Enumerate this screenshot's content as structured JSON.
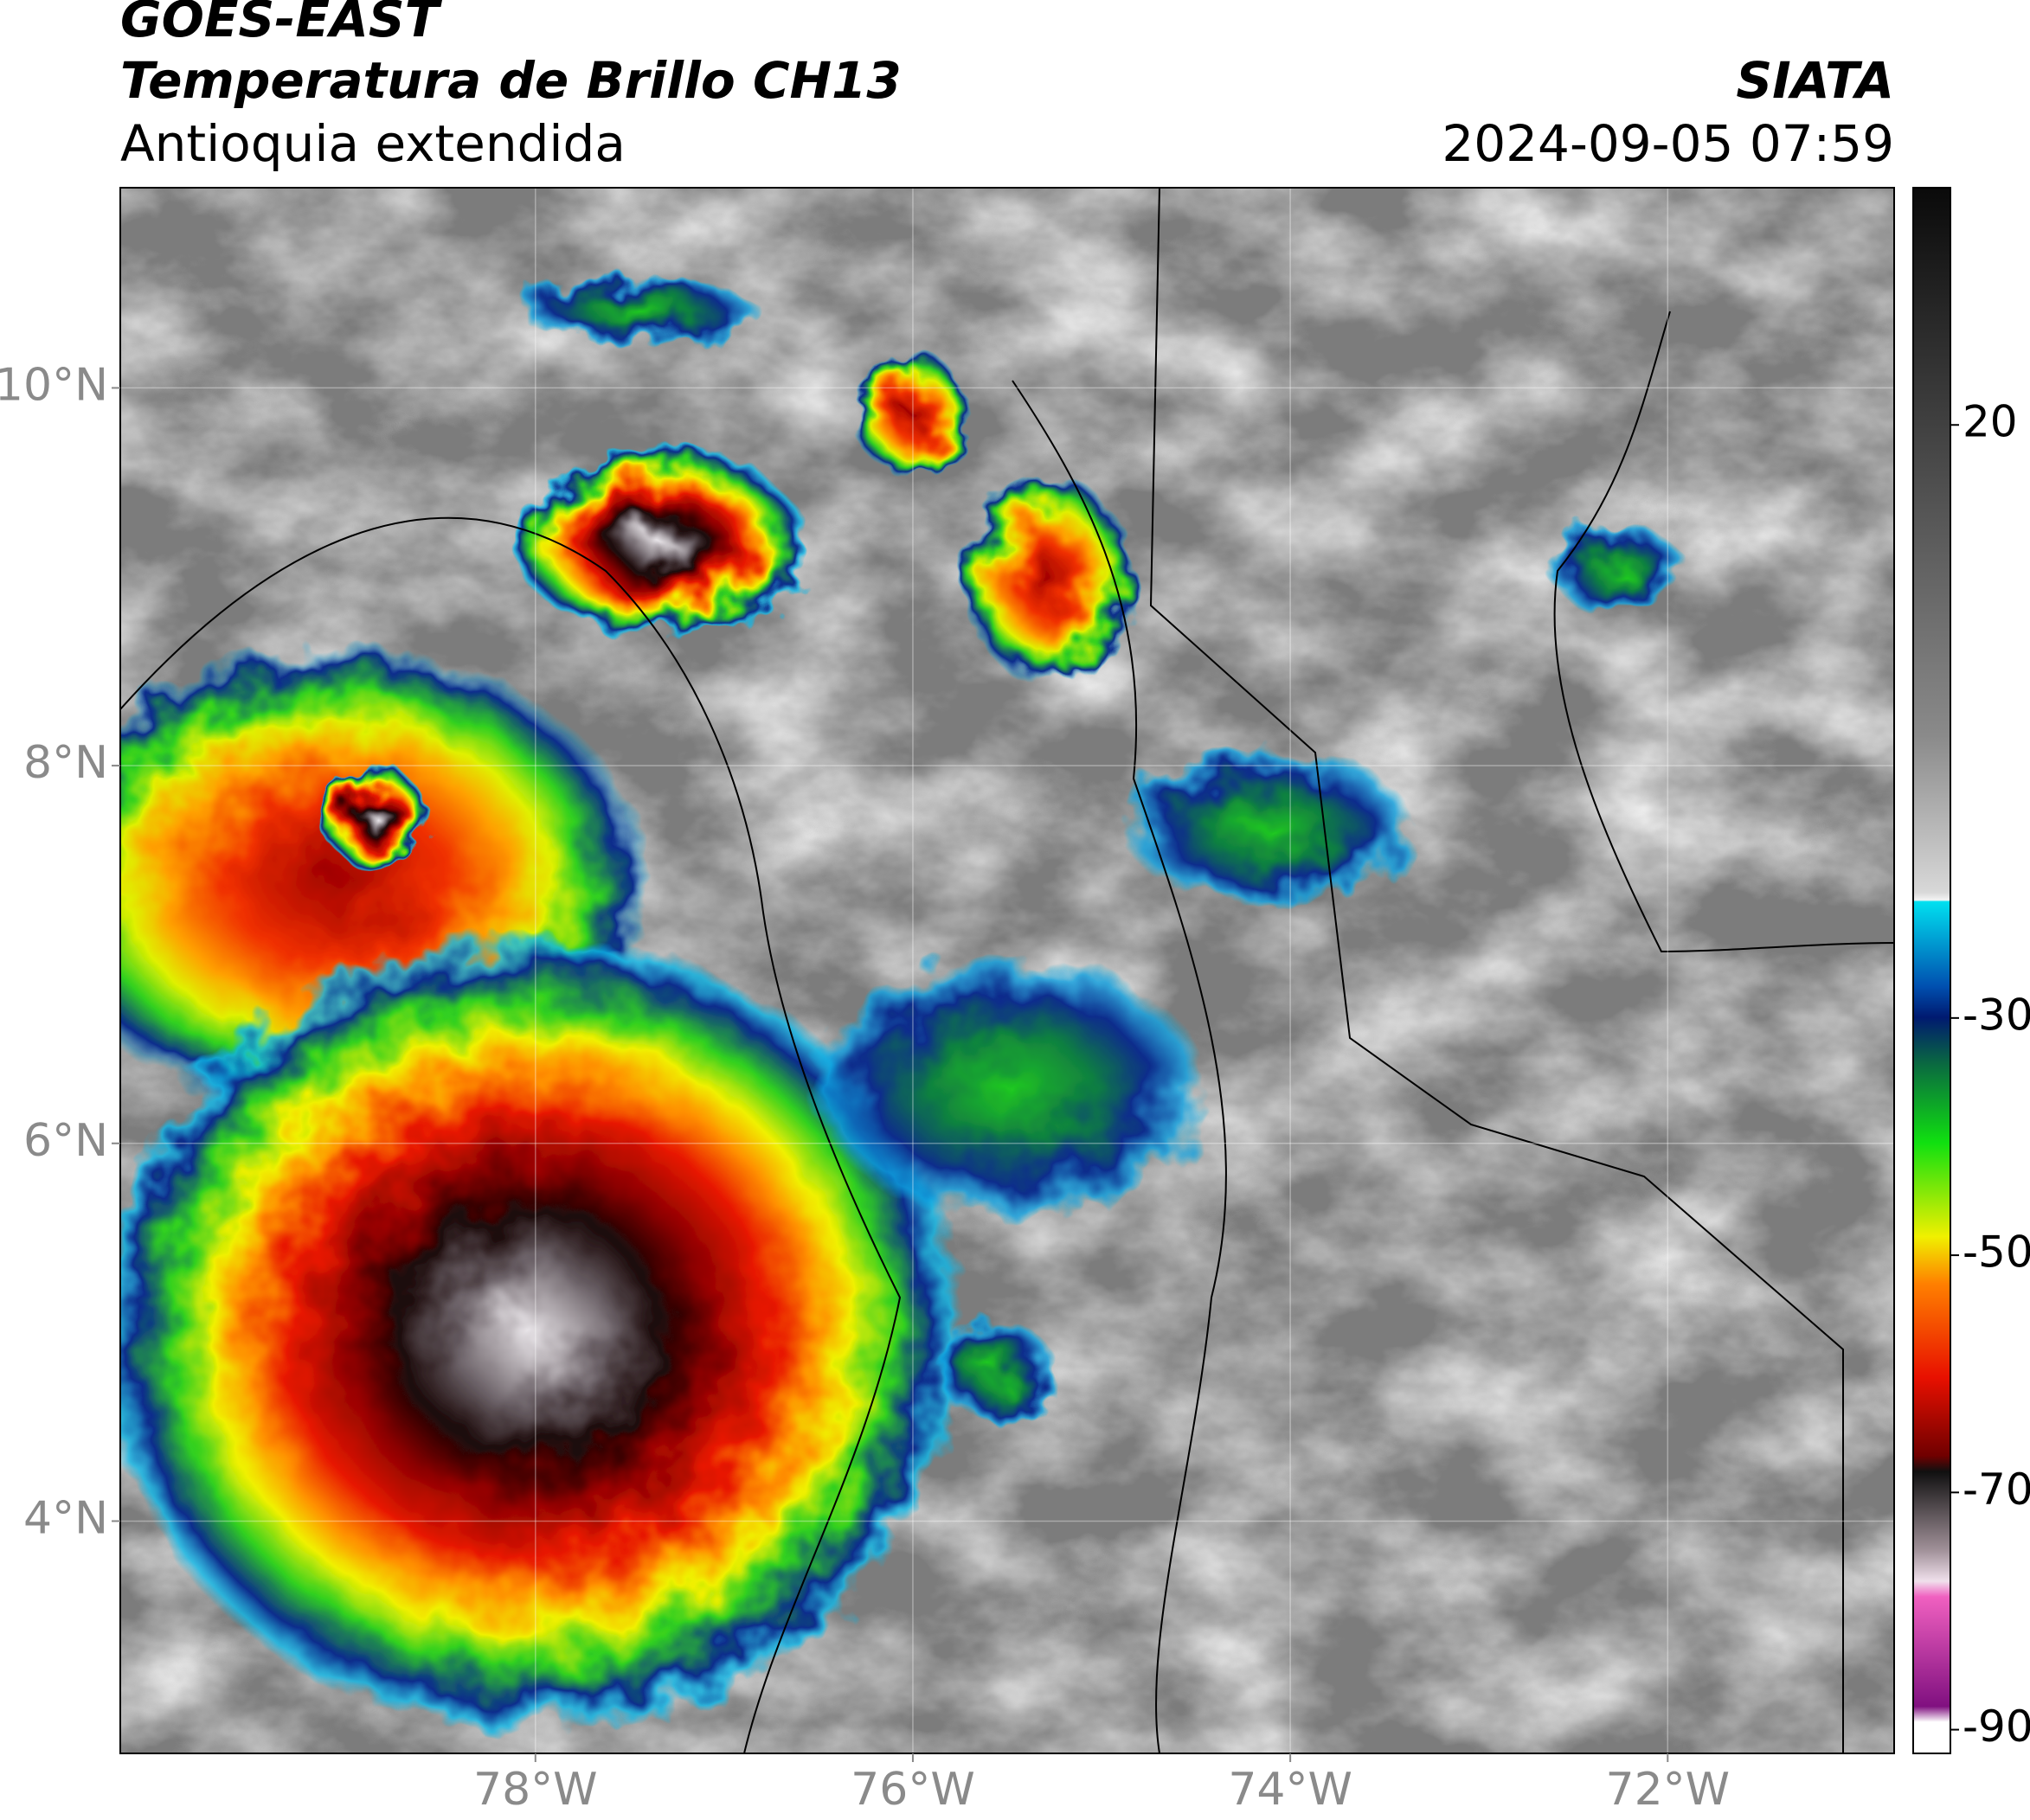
{
  "header": {
    "title": "GOES-EAST",
    "subtitle": "Temperatura de Brillo CH13",
    "region": "Antioquia extendida",
    "source": "SIATA",
    "timestamp": "2024-09-05 07:59"
  },
  "map": {
    "xlim": [
      -80.2,
      -70.8
    ],
    "ylim": [
      2.77,
      11.06
    ],
    "xticks": [
      {
        "value": -78,
        "label": "78°W"
      },
      {
        "value": -76,
        "label": "76°W"
      },
      {
        "value": -74,
        "label": "74°W"
      },
      {
        "value": -72,
        "label": "72°W"
      }
    ],
    "yticks": [
      {
        "value": 4,
        "label": "4°N"
      },
      {
        "value": 6,
        "label": "6°N"
      },
      {
        "value": 8,
        "label": "8°N"
      },
      {
        "value": 10,
        "label": "10°N"
      }
    ],
    "grid": true
  },
  "colorbar": {
    "clim": [
      -92,
      40
    ],
    "ticks": [
      20,
      -30,
      -50,
      -70,
      -90
    ]
  }
}
